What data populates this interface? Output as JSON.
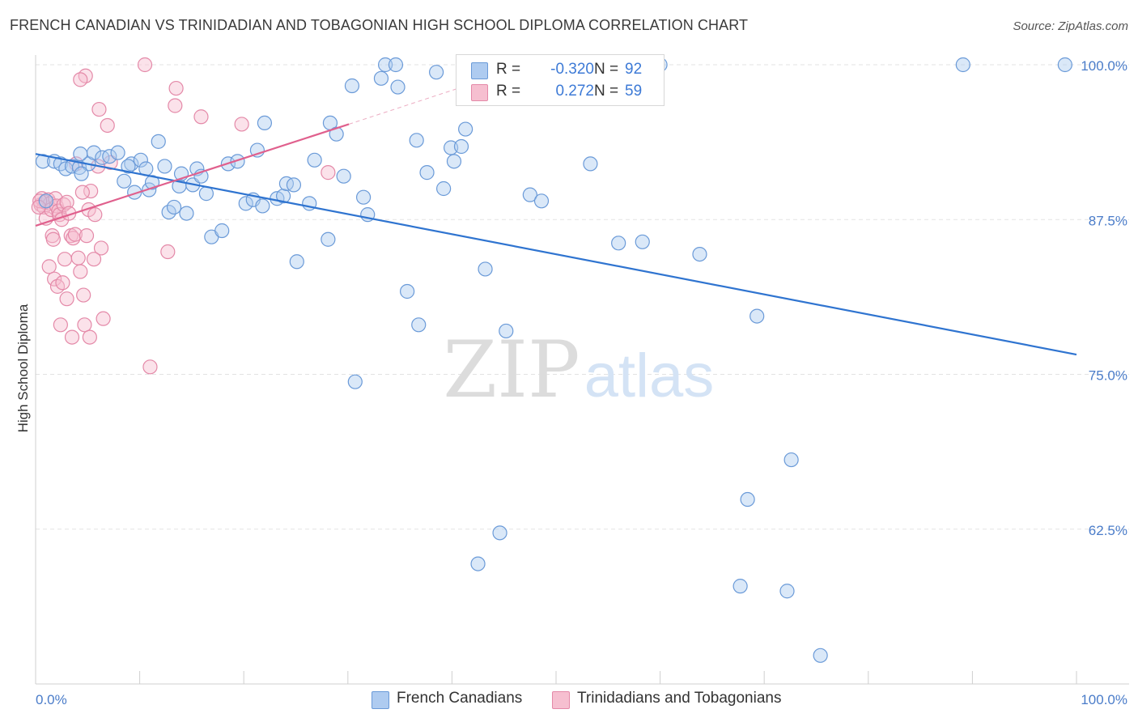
{
  "title": "FRENCH CANADIAN VS TRINIDADIAN AND TOBAGONIAN HIGH SCHOOL DIPLOMA CORRELATION CHART",
  "source": "Source: ZipAtlas.com",
  "watermark": {
    "zip": "ZIP",
    "atlas": "atlas"
  },
  "colors": {
    "blue_fill": "#aecbf0",
    "blue_stroke": "#6a9ad8",
    "blue_line": "#2f74d0",
    "pink_fill": "#f6bfd0",
    "pink_stroke": "#e489a8",
    "pink_line": "#e0608d",
    "axis_label": "#4a7cc9",
    "grid": "#e3e3e3"
  },
  "legend": {
    "rows": [
      {
        "r_label": "R =",
        "r_value": "-0.320",
        "n_label": "N =",
        "n_value": "92",
        "color": "#aecbf0",
        "stroke": "#6a9ad8"
      },
      {
        "r_label": "R =",
        "r_value": "0.272",
        "n_label": "N =",
        "n_value": "59",
        "color": "#f6bfd0",
        "stroke": "#e489a8"
      }
    ]
  },
  "chart_data": {
    "type": "scatter",
    "title": "FRENCH CANADIAN VS TRINIDADIAN AND TOBAGONIAN HIGH SCHOOL DIPLOMA CORRELATION CHART",
    "xlabel": "",
    "ylabel": "High School Diploma",
    "xlim": [
      0,
      100
    ],
    "ylim": [
      50,
      100
    ],
    "x_tick_labels": [
      "0.0%",
      "100.0%"
    ],
    "y_ticks": [
      62.5,
      75.0,
      87.5,
      100.0
    ],
    "y_tick_labels": [
      "62.5%",
      "75.0%",
      "87.5%",
      "100.0%"
    ],
    "grid": "horizontal dashed",
    "legend_position": "top-center",
    "series": [
      {
        "name": "French Canadians",
        "color": "#aecbf0",
        "trend": {
          "x": [
            0,
            100
          ],
          "y": [
            92.8,
            76.6
          ]
        },
        "points": [
          [
            0.7,
            92.2
          ],
          [
            1.8,
            92.2
          ],
          [
            2.4,
            92.0
          ],
          [
            2.9,
            91.6
          ],
          [
            3.5,
            91.8
          ],
          [
            4.2,
            91.7
          ],
          [
            5.1,
            92.0
          ],
          [
            4.3,
            92.8
          ],
          [
            5.6,
            92.9
          ],
          [
            6.4,
            92.5
          ],
          [
            7.1,
            92.6
          ],
          [
            7.9,
            92.9
          ],
          [
            8.5,
            90.6
          ],
          [
            9.2,
            92.0
          ],
          [
            9.5,
            89.7
          ],
          [
            10.1,
            92.3
          ],
          [
            10.6,
            91.6
          ],
          [
            10.9,
            89.9
          ],
          [
            11.8,
            93.8
          ],
          [
            12.4,
            91.8
          ],
          [
            12.8,
            88.1
          ],
          [
            13.3,
            88.5
          ],
          [
            13.8,
            90.2
          ],
          [
            14.5,
            88.0
          ],
          [
            15.1,
            90.3
          ],
          [
            15.5,
            91.6
          ],
          [
            15.9,
            91.0
          ],
          [
            16.4,
            89.6
          ],
          [
            16.9,
            86.1
          ],
          [
            17.9,
            86.6
          ],
          [
            18.5,
            92.0
          ],
          [
            19.4,
            92.2
          ],
          [
            20.2,
            88.8
          ],
          [
            20.9,
            89.1
          ],
          [
            21.3,
            93.1
          ],
          [
            21.8,
            88.6
          ],
          [
            23.2,
            89.2
          ],
          [
            22.0,
            95.3
          ],
          [
            23.8,
            89.4
          ],
          [
            24.1,
            90.4
          ],
          [
            24.8,
            90.3
          ],
          [
            25.1,
            84.1
          ],
          [
            26.3,
            88.8
          ],
          [
            26.8,
            92.3
          ],
          [
            28.1,
            85.9
          ],
          [
            28.3,
            95.3
          ],
          [
            28.9,
            94.4
          ],
          [
            29.6,
            91.0
          ],
          [
            30.4,
            98.3
          ],
          [
            30.7,
            74.4
          ],
          [
            31.5,
            89.3
          ],
          [
            31.9,
            87.9
          ],
          [
            33.2,
            98.9
          ],
          [
            33.6,
            100.0
          ],
          [
            34.6,
            100.0
          ],
          [
            34.8,
            98.2
          ],
          [
            35.7,
            81.7
          ],
          [
            36.8,
            79.0
          ],
          [
            36.6,
            93.9
          ],
          [
            37.6,
            91.3
          ],
          [
            38.5,
            99.4
          ],
          [
            39.2,
            90.0
          ],
          [
            39.9,
            93.3
          ],
          [
            40.2,
            92.2
          ],
          [
            40.9,
            93.4
          ],
          [
            41.3,
            94.8
          ],
          [
            42.1,
            100.0
          ],
          [
            42.5,
            59.7
          ],
          [
            43.2,
            83.5
          ],
          [
            44.6,
            62.2
          ],
          [
            45.2,
            78.5
          ],
          [
            47.5,
            89.5
          ],
          [
            48.6,
            89.0
          ],
          [
            53.3,
            92.0
          ],
          [
            56.0,
            85.6
          ],
          [
            57.7,
            100.0
          ],
          [
            58.3,
            85.7
          ],
          [
            60.0,
            100.0
          ],
          [
            63.8,
            84.7
          ],
          [
            67.7,
            57.9
          ],
          [
            68.4,
            64.9
          ],
          [
            69.3,
            79.7
          ],
          [
            72.2,
            57.5
          ],
          [
            72.6,
            68.1
          ],
          [
            75.4,
            52.3
          ],
          [
            89.1,
            100.0
          ],
          [
            98.9,
            100.0
          ],
          [
            1.0,
            89.0
          ],
          [
            4.4,
            91.2
          ],
          [
            8.9,
            91.8
          ],
          [
            11.2,
            90.5
          ],
          [
            14.0,
            91.2
          ]
        ]
      },
      {
        "name": "Trinidadians and Tobagonians",
        "color": "#f6bfd0",
        "trend": {
          "x": [
            0,
            30.1
          ],
          "y": [
            87.0,
            95.2
          ]
        },
        "trend_dashed": {
          "x": [
            30.1,
            44.6
          ],
          "y": [
            95.2,
            99.2
          ]
        },
        "points": [
          [
            0.5,
            88.7
          ],
          [
            0.6,
            89.2
          ],
          [
            0.8,
            88.5
          ],
          [
            0.9,
            88.9
          ],
          [
            1.0,
            87.6
          ],
          [
            1.2,
            89.1
          ],
          [
            1.4,
            88.8
          ],
          [
            1.5,
            88.3
          ],
          [
            1.6,
            86.2
          ],
          [
            1.7,
            85.9
          ],
          [
            1.9,
            89.2
          ],
          [
            2.0,
            88.6
          ],
          [
            2.2,
            88.2
          ],
          [
            2.3,
            87.9
          ],
          [
            2.5,
            87.5
          ],
          [
            2.7,
            88.7
          ],
          [
            3.0,
            88.9
          ],
          [
            3.2,
            88.0
          ],
          [
            3.4,
            86.2
          ],
          [
            3.6,
            86.0
          ],
          [
            3.8,
            86.3
          ],
          [
            4.1,
            84.4
          ],
          [
            4.3,
            83.3
          ],
          [
            4.6,
            81.4
          ],
          [
            4.9,
            86.2
          ],
          [
            5.1,
            88.3
          ],
          [
            5.3,
            89.8
          ],
          [
            5.7,
            87.9
          ],
          [
            6.0,
            91.8
          ],
          [
            6.3,
            85.2
          ],
          [
            6.5,
            79.5
          ],
          [
            6.9,
            95.1
          ],
          [
            7.2,
            92.1
          ],
          [
            1.3,
            83.7
          ],
          [
            1.8,
            82.7
          ],
          [
            2.1,
            82.1
          ],
          [
            2.4,
            79.0
          ],
          [
            2.6,
            82.4
          ],
          [
            2.8,
            84.3
          ],
          [
            3.0,
            81.1
          ],
          [
            3.5,
            78.0
          ],
          [
            3.9,
            92.0
          ],
          [
            4.5,
            89.7
          ],
          [
            4.7,
            79.0
          ],
          [
            5.2,
            78.0
          ],
          [
            5.6,
            84.3
          ],
          [
            6.1,
            96.4
          ],
          [
            4.8,
            99.1
          ],
          [
            4.3,
            98.8
          ],
          [
            10.5,
            100.0
          ],
          [
            13.5,
            98.1
          ],
          [
            13.4,
            96.7
          ],
          [
            15.9,
            95.8
          ],
          [
            12.7,
            84.9
          ],
          [
            11.0,
            75.6
          ],
          [
            19.8,
            95.2
          ],
          [
            28.1,
            91.3
          ],
          [
            0.4,
            89.0
          ],
          [
            0.3,
            88.5
          ]
        ]
      }
    ]
  },
  "bottom_legend": [
    {
      "label": "French Canadians",
      "color": "#aecbf0",
      "stroke": "#6a9ad8"
    },
    {
      "label": "Trinidadians and Tobagonians",
      "color": "#f6bfd0",
      "stroke": "#e489a8"
    }
  ]
}
